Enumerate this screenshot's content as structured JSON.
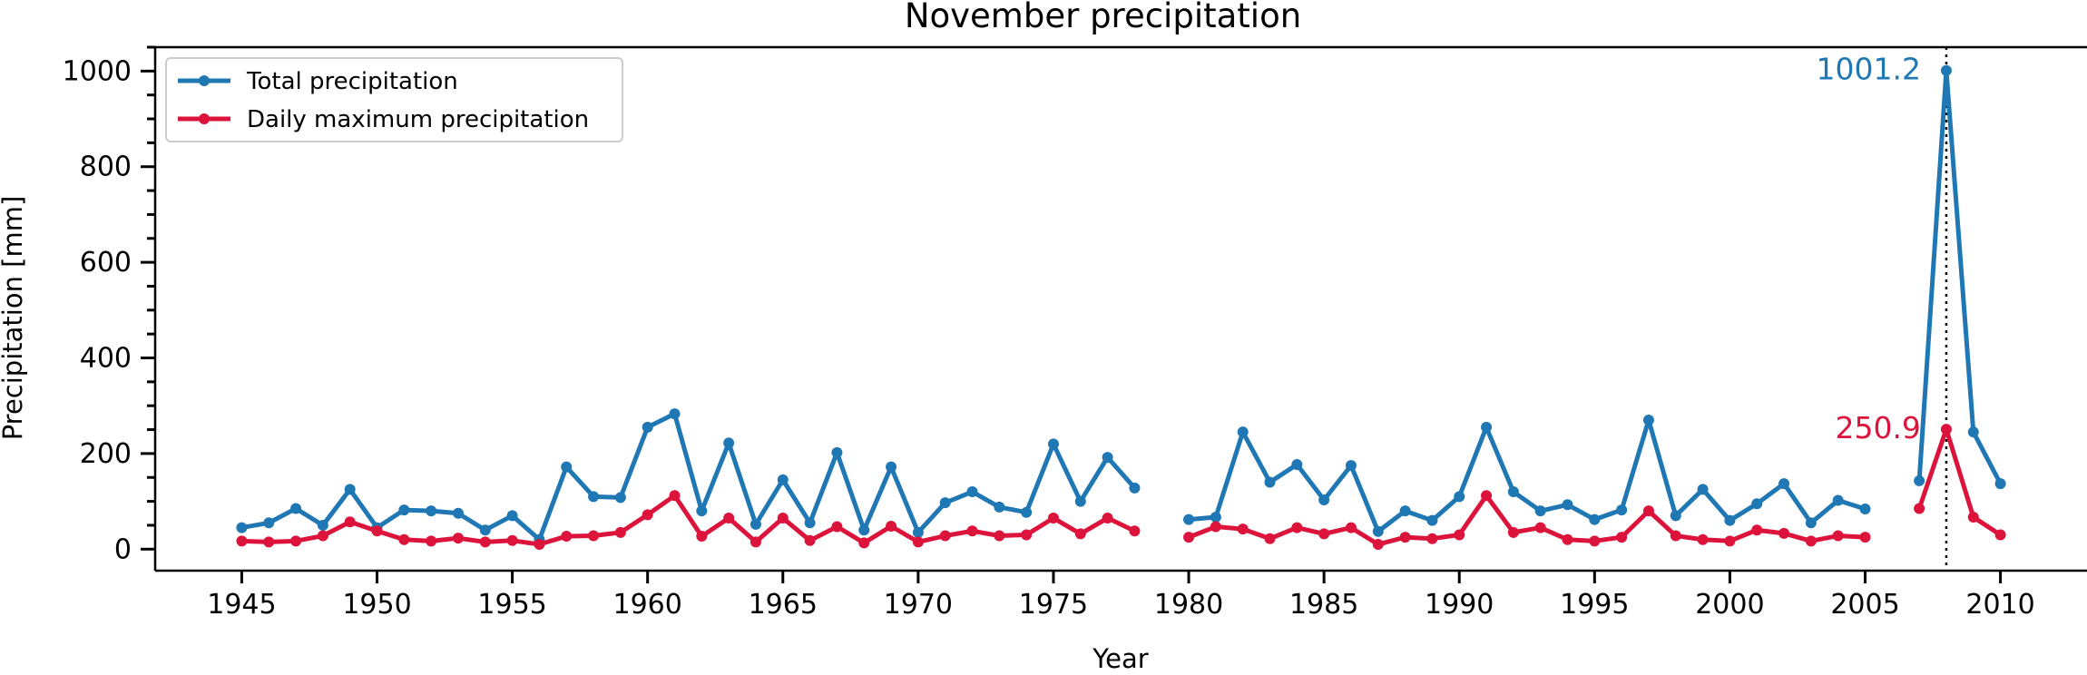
{
  "chart_data": {
    "type": "line",
    "title": "November precipitation",
    "xlabel": "Year",
    "ylabel": "Precipitation [mm]",
    "xlim": [
      1941.8,
      2013.2
    ],
    "ylim": [
      -45,
      1050
    ],
    "xticks": [
      1945,
      1950,
      1955,
      1960,
      1965,
      1970,
      1975,
      1980,
      1985,
      1990,
      1995,
      2000,
      2005,
      2010
    ],
    "yticks": [
      0,
      200,
      400,
      600,
      800,
      1000
    ],
    "y_minor_step": 50,
    "legend_position": "top-left",
    "grid": false,
    "series": [
      {
        "name": "Total precipitation",
        "color": "#1f77b4",
        "points": [
          [
            1945,
            45
          ],
          [
            1946,
            55
          ],
          [
            1947,
            85
          ],
          [
            1948,
            50
          ],
          [
            1949,
            125
          ],
          [
            1950,
            45
          ],
          [
            1951,
            82
          ],
          [
            1952,
            80
          ],
          [
            1953,
            75
          ],
          [
            1954,
            40
          ],
          [
            1955,
            70
          ],
          [
            1956,
            20
          ],
          [
            1957,
            172
          ],
          [
            1958,
            110
          ],
          [
            1959,
            108
          ],
          [
            1960,
            255
          ],
          [
            1961,
            283
          ],
          [
            1962,
            80
          ],
          [
            1963,
            222
          ],
          [
            1964,
            52
          ],
          [
            1965,
            145
          ],
          [
            1966,
            55
          ],
          [
            1967,
            202
          ],
          [
            1968,
            40
          ],
          [
            1969,
            172
          ],
          [
            1970,
            35
          ],
          [
            1971,
            97
          ],
          [
            1972,
            120
          ],
          [
            1973,
            88
          ],
          [
            1974,
            77
          ],
          [
            1975,
            220
          ],
          [
            1976,
            100
          ],
          [
            1977,
            192
          ],
          [
            1978,
            128
          ],
          [
            1979,
            null
          ],
          [
            1980,
            62
          ],
          [
            1981,
            67
          ],
          [
            1982,
            245
          ],
          [
            1983,
            140
          ],
          [
            1984,
            177
          ],
          [
            1985,
            103
          ],
          [
            1986,
            175
          ],
          [
            1987,
            37
          ],
          [
            1988,
            80
          ],
          [
            1989,
            60
          ],
          [
            1990,
            110
          ],
          [
            1991,
            255
          ],
          [
            1992,
            120
          ],
          [
            1993,
            80
          ],
          [
            1994,
            93
          ],
          [
            1995,
            62
          ],
          [
            1996,
            82
          ],
          [
            1997,
            270
          ],
          [
            1998,
            70
          ],
          [
            1999,
            125
          ],
          [
            2000,
            60
          ],
          [
            2001,
            95
          ],
          [
            2002,
            137
          ],
          [
            2003,
            55
          ],
          [
            2004,
            102
          ],
          [
            2005,
            84
          ],
          [
            2006,
            null
          ],
          [
            2007,
            143
          ],
          [
            2008,
            1001.2
          ],
          [
            2009,
            245
          ],
          [
            2010,
            137
          ]
        ]
      },
      {
        "name": "Daily maximum precipitation",
        "color": "#dc143c",
        "points": [
          [
            1945,
            17
          ],
          [
            1946,
            15
          ],
          [
            1947,
            17
          ],
          [
            1948,
            28
          ],
          [
            1949,
            57
          ],
          [
            1950,
            38
          ],
          [
            1951,
            20
          ],
          [
            1952,
            17
          ],
          [
            1953,
            23
          ],
          [
            1954,
            15
          ],
          [
            1955,
            18
          ],
          [
            1956,
            10
          ],
          [
            1957,
            27
          ],
          [
            1958,
            28
          ],
          [
            1959,
            35
          ],
          [
            1960,
            72
          ],
          [
            1961,
            112
          ],
          [
            1962,
            27
          ],
          [
            1963,
            65
          ],
          [
            1964,
            15
          ],
          [
            1965,
            65
          ],
          [
            1966,
            18
          ],
          [
            1967,
            47
          ],
          [
            1968,
            13
          ],
          [
            1969,
            48
          ],
          [
            1970,
            15
          ],
          [
            1971,
            28
          ],
          [
            1972,
            38
          ],
          [
            1973,
            28
          ],
          [
            1974,
            30
          ],
          [
            1975,
            65
          ],
          [
            1976,
            32
          ],
          [
            1977,
            65
          ],
          [
            1978,
            38
          ],
          [
            1979,
            null
          ],
          [
            1980,
            25
          ],
          [
            1981,
            47
          ],
          [
            1982,
            42
          ],
          [
            1983,
            22
          ],
          [
            1984,
            45
          ],
          [
            1985,
            32
          ],
          [
            1986,
            45
          ],
          [
            1987,
            10
          ],
          [
            1988,
            25
          ],
          [
            1989,
            22
          ],
          [
            1990,
            30
          ],
          [
            1991,
            112
          ],
          [
            1992,
            35
          ],
          [
            1993,
            45
          ],
          [
            1994,
            20
          ],
          [
            1995,
            17
          ],
          [
            1996,
            25
          ],
          [
            1997,
            80
          ],
          [
            1998,
            28
          ],
          [
            1999,
            20
          ],
          [
            2000,
            17
          ],
          [
            2001,
            40
          ],
          [
            2002,
            33
          ],
          [
            2003,
            17
          ],
          [
            2004,
            28
          ],
          [
            2005,
            25
          ],
          [
            2006,
            null
          ],
          [
            2007,
            85
          ],
          [
            2008,
            250.9
          ],
          [
            2009,
            67
          ],
          [
            2010,
            30
          ]
        ]
      }
    ],
    "vline": {
      "x": 2008,
      "style": "dotted",
      "color": "#000000"
    },
    "annotations": [
      {
        "text": "1001.2",
        "x": 2008,
        "y": 1001.2,
        "color": "#1f77b4"
      },
      {
        "text": "250.9",
        "x": 2008,
        "y": 250.9,
        "color": "#dc143c"
      }
    ]
  }
}
